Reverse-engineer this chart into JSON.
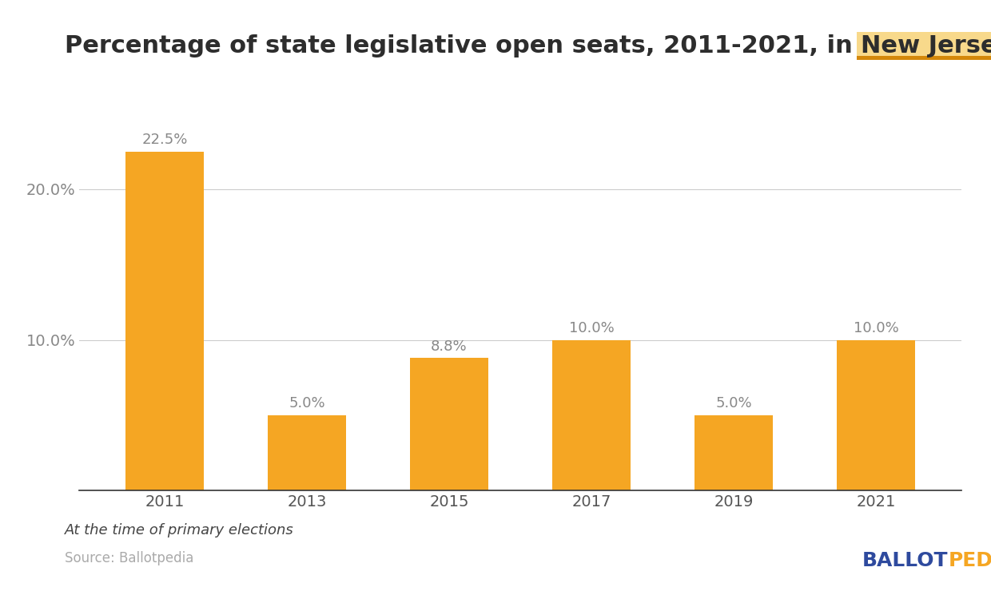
{
  "title_plain": "Percentage of state legislative open seats, 2011-2021, in ",
  "title_highlight": "New Jersey",
  "categories": [
    "2011",
    "2013",
    "2015",
    "2017",
    "2019",
    "2021"
  ],
  "values": [
    22.5,
    5.0,
    8.8,
    10.0,
    5.0,
    10.0
  ],
  "bar_color": "#F5A623",
  "bar_color_highlight_bg": "#F8D98B",
  "highlight_border_color": "#D4880A",
  "yticks": [
    10.0,
    20.0
  ],
  "ylim": [
    0,
    25.5
  ],
  "grid_color": "#CCCCCC",
  "xlabel_color": "#555555",
  "ylabel_color": "#888888",
  "annotation_color": "#888888",
  "background_color": "#FFFFFF",
  "footnote": "At the time of primary elections",
  "source": "Source: Ballotpedia",
  "ballotpedia_ballot": "BALLOT",
  "ballotpedia_pedia": "PEDIA",
  "ballot_color": "#2E4A9E",
  "pedia_color": "#F5A623",
  "title_fontsize": 22,
  "tick_fontsize": 14,
  "annotation_fontsize": 13,
  "footnote_fontsize": 13,
  "source_fontsize": 12,
  "logo_fontsize": 18
}
